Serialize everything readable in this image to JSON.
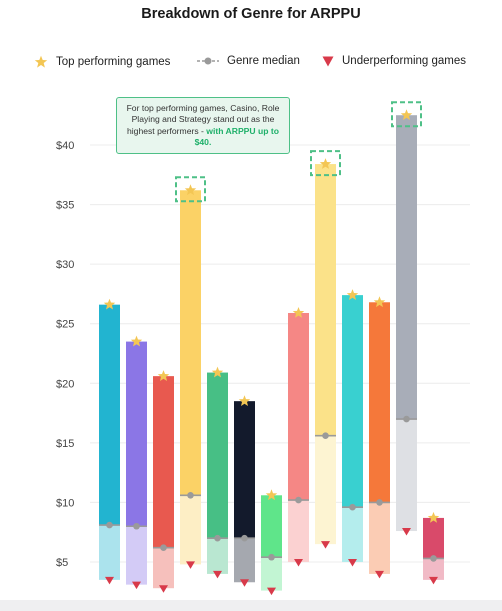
{
  "title": "Breakdown of Genre for ARPPU",
  "legend": {
    "top": "Top performing games",
    "median": "Genre median",
    "under": "Underperforming games"
  },
  "callout": {
    "text": "For top performing games, Casino, Role Playing and Strategy stand out as the highest performers -",
    "highlight": "with ARPPU up to $40."
  },
  "colors": {
    "top_marker": "#f3c654",
    "median_marker": "#9a9a9a",
    "under_marker": "#d83a4a",
    "highlight_box": "#4ec087"
  },
  "chart_data": {
    "type": "bar",
    "title": "Breakdown of Genre for ARPPU",
    "xlabel": "",
    "ylabel": "",
    "ylim": [
      2,
      44
    ],
    "yticks": [
      {
        "value": 5,
        "label": "$5"
      },
      {
        "value": 10,
        "label": "$10"
      },
      {
        "value": 15,
        "label": "$15"
      },
      {
        "value": 20,
        "label": "$20"
      },
      {
        "value": 25,
        "label": "$25"
      },
      {
        "value": 30,
        "label": "$30"
      },
      {
        "value": 35,
        "label": "$35"
      },
      {
        "value": 40,
        "label": "$40"
      }
    ],
    "grid": true,
    "legend_position": "top",
    "series": [
      {
        "name": "Top performing games",
        "values": [
          26.6,
          23.5,
          20.6,
          36.2,
          20.9,
          18.5,
          10.6,
          25.9,
          38.4,
          27.4,
          26.8,
          42.5,
          8.7
        ]
      },
      {
        "name": "Genre median",
        "values": [
          8.1,
          8.0,
          6.2,
          10.6,
          7.0,
          7.0,
          5.4,
          10.2,
          15.6,
          9.6,
          10.0,
          17.0,
          5.3
        ]
      },
      {
        "name": "Underperforming games",
        "values": [
          3.5,
          3.1,
          2.8,
          4.8,
          4.0,
          3.3,
          2.6,
          5.0,
          6.5,
          5.0,
          4.0,
          7.6,
          3.5
        ]
      }
    ],
    "bar_colors": [
      "#22b4d0",
      "#8b76e6",
      "#e8594f",
      "#fbd266",
      "#47bf85",
      "#131a2c",
      "#5fe58a",
      "#f58785",
      "#fbe289",
      "#39d0d0",
      "#f5783a",
      "#a8adb8",
      "#d94a6a"
    ],
    "highlighted_bars": [
      3,
      8,
      11
    ]
  }
}
